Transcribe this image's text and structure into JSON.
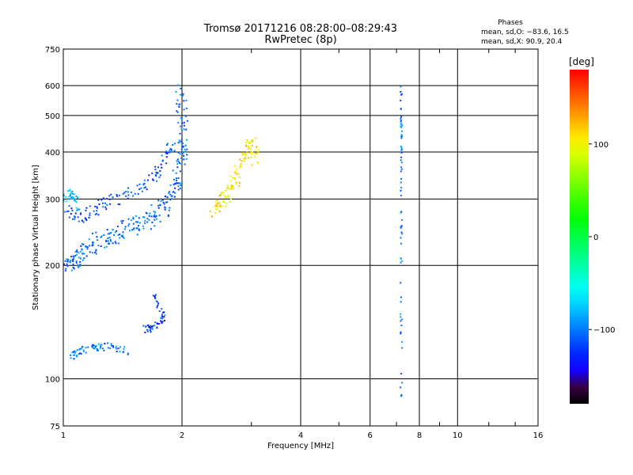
{
  "chart_data": {
    "type": "scatter",
    "title": "Tromsø 20171216 08:28:00–08:29:43",
    "subtitle": "RwPretec (8p)",
    "xlabel": "Frequency [MHz]",
    "ylabel": "Stationary phase Virtual Height [km]",
    "x_scale": "log",
    "y_scale": "log",
    "xlim": [
      1,
      16
    ],
    "ylim": [
      75,
      750
    ],
    "x_ticks": [
      "1",
      "2",
      "4",
      "6",
      "8",
      "10",
      "16"
    ],
    "x_tick_values": [
      1,
      2,
      4,
      6,
      8,
      10,
      16
    ],
    "y_ticks": [
      "75",
      "100",
      "200",
      "300",
      "400",
      "500",
      "600",
      "750"
    ],
    "y_tick_values": [
      75,
      100,
      200,
      300,
      400,
      500,
      600,
      750
    ],
    "grid": true,
    "phases_header": "Phases",
    "phases_line1": "mean, sd,O: −83.6, 16.5",
    "phases_line2": "mean, sd,X:  90.9, 20.4",
    "colorbar": {
      "label": "[deg]",
      "range": [
        -180,
        180
      ],
      "ticks": [
        "100",
        "0",
        "−100"
      ],
      "tick_values": [
        100,
        0,
        -100
      ]
    },
    "clusters": [
      {
        "name": "o-lower",
        "points": [
          [
            1.02,
            195
          ],
          [
            1.05,
            205
          ],
          [
            1.1,
            212
          ],
          [
            1.15,
            220
          ],
          [
            1.2,
            228
          ],
          [
            1.3,
            238
          ],
          [
            1.4,
            245
          ],
          [
            1.5,
            252
          ],
          [
            1.6,
            260
          ],
          [
            1.7,
            270
          ],
          [
            1.8,
            285
          ],
          [
            1.9,
            310
          ],
          [
            1.95,
            340
          ],
          [
            2.0,
            380
          ],
          [
            2.02,
            430
          ],
          [
            2.0,
            500
          ],
          [
            1.98,
            580
          ]
        ],
        "spread": 0.12,
        "phase": [
          -125,
          -85
        ]
      },
      {
        "name": "o-upper",
        "points": [
          [
            1.02,
            280
          ],
          [
            1.1,
            270
          ],
          [
            1.2,
            280
          ],
          [
            1.3,
            295
          ],
          [
            1.5,
            310
          ],
          [
            1.7,
            340
          ],
          [
            1.8,
            380
          ],
          [
            1.9,
            420
          ]
        ],
        "spread": 0.08,
        "phase": [
          -130,
          -95
        ]
      },
      {
        "name": "low-f-high",
        "points": [
          [
            1.0,
            300
          ],
          [
            1.05,
            310
          ],
          [
            1.08,
            290
          ]
        ],
        "spread": 0.06,
        "phase": [
          -90,
          -60
        ]
      },
      {
        "name": "x-mode",
        "points": [
          [
            2.4,
            270
          ],
          [
            2.5,
            290
          ],
          [
            2.6,
            310
          ],
          [
            2.7,
            330
          ],
          [
            2.8,
            360
          ],
          [
            2.9,
            390
          ],
          [
            3.0,
            420
          ],
          [
            3.1,
            380
          ]
        ],
        "spread": 0.1,
        "phase": [
          80,
          130
        ]
      },
      {
        "name": "e-layer",
        "points": [
          [
            1.05,
            115
          ],
          [
            1.1,
            118
          ],
          [
            1.2,
            121
          ],
          [
            1.3,
            122
          ],
          [
            1.45,
            118
          ]
        ],
        "spread": 0.05,
        "phase": [
          -130,
          -80
        ]
      },
      {
        "name": "e-second",
        "points": [
          [
            1.6,
            135
          ],
          [
            1.7,
            137
          ],
          [
            1.8,
            145
          ],
          [
            1.7,
            165
          ]
        ],
        "spread": 0.05,
        "phase": [
          -160,
          -90
        ]
      },
      {
        "name": "f7-column",
        "points": [
          [
            7.2,
            90
          ],
          [
            7.2,
            200
          ],
          [
            7.2,
            320
          ],
          [
            7.2,
            450
          ],
          [
            7.2,
            600
          ]
        ],
        "spread": 0.02,
        "phase": [
          -120,
          -80
        ]
      }
    ]
  }
}
